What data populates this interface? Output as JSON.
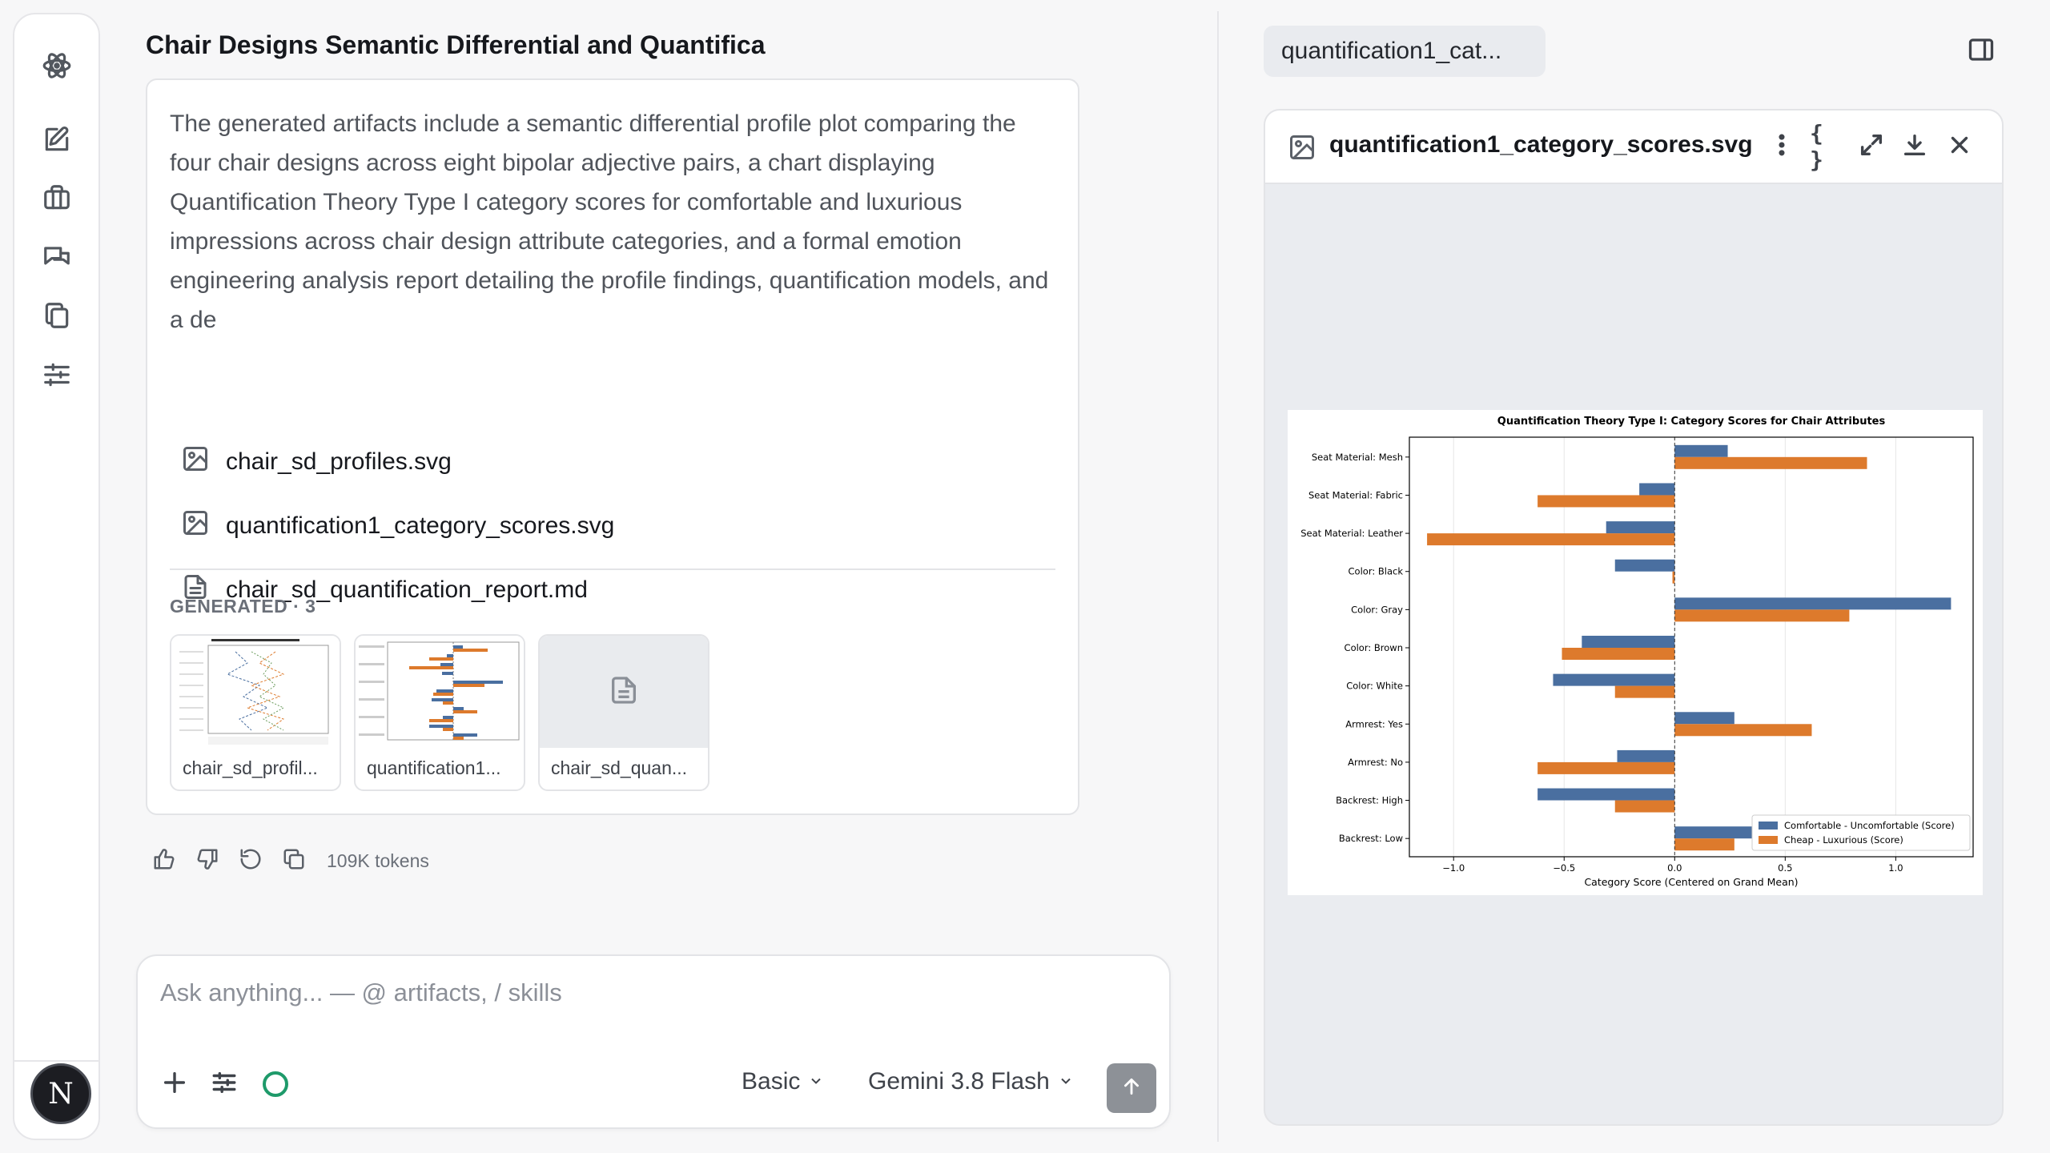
{
  "sidebar": {
    "items": [
      {
        "icon": "atom-logo-icon"
      },
      {
        "icon": "compose-icon"
      },
      {
        "icon": "briefcase-icon"
      },
      {
        "icon": "chat-bubbles-icon"
      },
      {
        "icon": "copy-documents-icon"
      },
      {
        "icon": "sliders-icon"
      }
    ],
    "avatar_initial": "N"
  },
  "chat": {
    "title": "Chair Designs Semantic Differential and Quantifica",
    "message": "The generated artifacts include a semantic differential profile plot comparing the four chair designs across eight bipolar adjective pairs, a chart displaying Quantification Theory Type I category scores for comfortable and luxurious impressions across chair design attribute categories, and a formal emotion engineering analysis report detailing the profile findings, quantification models, and a de",
    "files": [
      {
        "name": "chair_sd_profiles.svg",
        "icon": "image-icon"
      },
      {
        "name": "quantification1_category_scores.svg",
        "icon": "image-icon"
      },
      {
        "name": "chair_sd_quantification_report.md",
        "icon": "document-icon"
      }
    ],
    "generated_label": "GENERATED · 3",
    "thumbnails": [
      {
        "name": "chair_sd_profil..."
      },
      {
        "name": "quantification1..."
      },
      {
        "name": "chair_sd_quan..."
      }
    ],
    "tokens": "109K tokens"
  },
  "composer": {
    "placeholder": "Ask anything... — @ artifacts, / skills",
    "mode": "Basic",
    "model": "Gemini 3.8 Flash"
  },
  "right_panel": {
    "tab_label": "quantification1_cat...",
    "viewer_filename": "quantification1_category_scores.svg",
    "braces_label": "{ }"
  },
  "colors": {
    "accent_green": "#1e9a6a",
    "series_blue": "#4a6fa0",
    "series_orange": "#dd7a2c"
  },
  "chart_data": {
    "type": "bar",
    "orientation": "horizontal",
    "title": "Quantification Theory Type I: Category Scores for Chair Attributes",
    "xlabel": "Category Score (Centered on Grand Mean)",
    "ylabel": "",
    "xlim": [
      -1.2,
      1.35
    ],
    "x_ticks": [
      "−1.0",
      "−0.5",
      "0.0",
      "0.5",
      "1.0"
    ],
    "x_tick_values": [
      -1.0,
      -0.5,
      0.0,
      0.5,
      1.0
    ],
    "reference_line": 0.0,
    "grid": true,
    "legend_position": "lower-right",
    "categories": [
      "Seat Material: Mesh",
      "Seat Material: Fabric",
      "Seat Material: Leather",
      "Color: Black",
      "Color: Gray",
      "Color: Brown",
      "Color: White",
      "Armrest: Yes",
      "Armrest: No",
      "Backrest: High",
      "Backrest: Low"
    ],
    "series": [
      {
        "name": "Comfortable - Uncomfortable (Score)",
        "color": "#4a6fa0",
        "values": [
          0.24,
          -0.16,
          -0.31,
          -0.27,
          1.25,
          -0.42,
          -0.55,
          0.27,
          -0.26,
          -0.62,
          0.62
        ]
      },
      {
        "name": "Cheap - Luxurious (Score)",
        "color": "#dd7a2c",
        "values": [
          0.87,
          -0.62,
          -1.12,
          -0.01,
          0.79,
          -0.51,
          -0.27,
          0.62,
          -0.62,
          -0.27,
          0.27
        ]
      }
    ]
  }
}
